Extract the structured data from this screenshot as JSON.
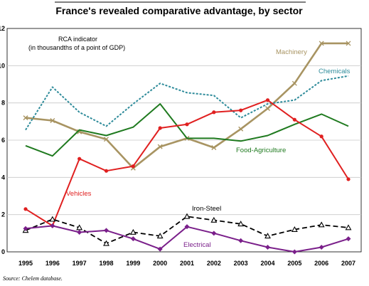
{
  "chart_data": {
    "type": "line",
    "title": "France's revealed comparative advantage, by sector",
    "annotation": [
      "RCA indicator",
      "(in thousandths of a point of GDP)"
    ],
    "source": "Source: Chelem database.",
    "x": [
      "1995",
      "1996",
      "1997",
      "1998",
      "1999",
      "2000",
      "2001",
      "2002",
      "2003",
      "2004",
      "2005",
      "2006",
      "2007"
    ],
    "ylim": [
      0,
      12
    ],
    "yticks": [
      0,
      2,
      4,
      6,
      8,
      10,
      12
    ],
    "grid": true,
    "series": [
      {
        "name": "Machinery",
        "color": "#a89462",
        "style": "solid",
        "marker": "x",
        "values": [
          7.2,
          7.05,
          6.45,
          6.05,
          4.5,
          5.65,
          6.1,
          5.6,
          6.6,
          7.7,
          9.05,
          11.2,
          11.2
        ]
      },
      {
        "name": "Chemicals",
        "color": "#2e8b9a",
        "style": "dotted",
        "marker": "none",
        "values": [
          6.55,
          8.85,
          7.5,
          6.75,
          7.95,
          9.05,
          8.55,
          8.4,
          7.2,
          7.95,
          8.15,
          9.2,
          9.45
        ]
      },
      {
        "name": "Food-Agriculture",
        "color": "#1f7a1f",
        "style": "solid",
        "marker": "none",
        "values": [
          5.7,
          5.15,
          6.55,
          6.25,
          6.7,
          7.95,
          6.1,
          6.1,
          5.95,
          6.25,
          6.85,
          7.4,
          6.75
        ]
      },
      {
        "name": "Vehicles",
        "color": "#e02020",
        "style": "solid",
        "marker": "circle",
        "values": [
          2.3,
          1.4,
          5.0,
          4.35,
          4.6,
          6.65,
          6.85,
          7.5,
          7.6,
          8.15,
          7.1,
          6.2,
          3.9
        ]
      },
      {
        "name": "Iron-Steel",
        "color": "#000000",
        "style": "dashed",
        "marker": "triangle",
        "values": [
          1.15,
          1.75,
          1.3,
          0.45,
          1.05,
          0.85,
          1.9,
          1.7,
          1.5,
          0.85,
          1.2,
          1.45,
          1.3
        ]
      },
      {
        "name": "Electrical",
        "color": "#7a1f8a",
        "style": "solid",
        "marker": "diamond",
        "values": [
          1.25,
          1.4,
          1.05,
          1.15,
          0.7,
          0.15,
          1.35,
          1.0,
          0.6,
          0.25,
          0.0,
          0.25,
          0.7
        ]
      }
    ]
  }
}
